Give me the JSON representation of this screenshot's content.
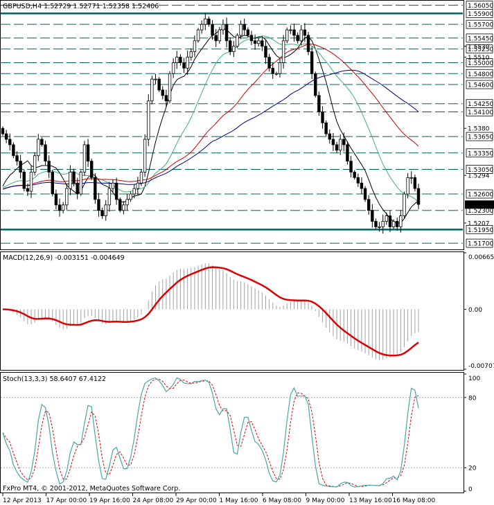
{
  "main_header": "GBPUSD,H4  1.52729 1.52771 1.52358 1.52406",
  "macd_header": "MACD(12,26,9) -0.003151 -0.004649",
  "stoch_header": "Stoch(13,3,3) 58.6407 67.4122",
  "copyright": "FxPro MT4, © 2001-2012, MetaQuotes Software Corp.",
  "colors": {
    "background": "#ffffff",
    "candles": "#000000",
    "level_lines": "#006060",
    "sma_short": "#000000",
    "sma_mid": "#3cb371",
    "sma_long": "#cc0000",
    "sma_longest": "#00008b",
    "macd_signal": "#dd0000",
    "macd_hist": "#a0a0a0",
    "stoch_main": "#4aa6a6",
    "stoch_signal": "#dd0000"
  },
  "chart_data": [
    {
      "type": "candlestick",
      "symbol": "GBPUSD",
      "timeframe": "H4",
      "ohlc_last": {
        "open": 1.52729,
        "high": 1.52771,
        "low": 1.52358,
        "close": 1.52406
      },
      "ylim": [
        1.516,
        1.5612
      ],
      "price_ticks": [
        "1.56050",
        "1.55900",
        "1.55700",
        "1.55450",
        "1.55250",
        "1.55000",
        "1.54800",
        "1.54600",
        "1.54250",
        "1.54100",
        "1.53650",
        "1.53350",
        "1.53050",
        "1.52600",
        "1.52300",
        "1.51950",
        "1.51700"
      ],
      "plain_ticks": [
        "1.5530",
        "1.5510",
        "1.5380",
        "1.5294",
        "1.5207"
      ],
      "level_lines": [
        1.5605,
        1.559,
        1.557,
        1.5545,
        1.5525,
        1.55,
        1.548,
        1.546,
        1.5425,
        1.541,
        1.5365,
        1.5335,
        1.5305,
        1.526,
        1.523,
        1.5195,
        1.517
      ],
      "current_price_label": "1.52406",
      "current_price": 1.52406,
      "x_labels": [
        "12 Apr 2013",
        "17 Apr 00:00",
        "19 Apr 16:00",
        "24 Apr 08:00",
        "29 Apr 00:00",
        "1 May 16:00",
        "6 May 08:00",
        "9 May 00:00",
        "13 May 16:00",
        "16 May 08:00"
      ],
      "close": [
        1.537,
        1.536,
        1.535,
        1.533,
        1.532,
        1.53,
        1.527,
        1.5265,
        1.53,
        1.533,
        1.536,
        1.535,
        1.532,
        1.53,
        1.526,
        1.524,
        1.523,
        1.524,
        1.527,
        1.53,
        1.528,
        1.526,
        1.53,
        1.535,
        1.532,
        1.529,
        1.525,
        1.523,
        1.522,
        1.524,
        1.527,
        1.528,
        1.525,
        1.523,
        1.524,
        1.525,
        1.526,
        1.527,
        1.528,
        1.53,
        1.536,
        1.543,
        1.547,
        1.547,
        1.545,
        1.544,
        1.543,
        1.548,
        1.55,
        1.551,
        1.55,
        1.549,
        1.551,
        1.552,
        1.554,
        1.556,
        1.557,
        1.558,
        1.557,
        1.555,
        1.554,
        1.556,
        1.557,
        1.554,
        1.552,
        1.553,
        1.555,
        1.557,
        1.556,
        1.555,
        1.554,
        1.5535,
        1.554,
        1.553,
        1.551,
        1.549,
        1.548,
        1.548,
        1.55,
        1.554,
        1.556,
        1.556,
        1.555,
        1.554,
        1.556,
        1.555,
        1.552,
        1.548,
        1.544,
        1.541,
        1.539,
        1.537,
        1.536,
        1.535,
        1.534,
        1.536,
        1.535,
        1.532,
        1.53,
        1.529,
        1.528,
        1.527,
        1.525,
        1.523,
        1.521,
        1.52,
        1.52,
        1.521,
        1.522,
        1.52,
        1.521,
        1.52,
        1.522,
        1.526,
        1.529,
        1.529,
        1.527,
        1.5241
      ]
    },
    {
      "type": "line",
      "title": "MACD(12,26,9)",
      "values_header": [
        -0.003151,
        -0.004649
      ],
      "y_ticks": [
        "0.006658",
        "0.00",
        "-0.00707"
      ],
      "ylim": [
        -0.00707,
        0.006658
      ]
    },
    {
      "type": "line",
      "title": "Stoch(13,3,3)",
      "values_header": [
        58.6407,
        67.4122
      ],
      "y_ticks": [
        "100",
        "80",
        "20",
        "0"
      ],
      "ylim": [
        0,
        100
      ]
    }
  ]
}
